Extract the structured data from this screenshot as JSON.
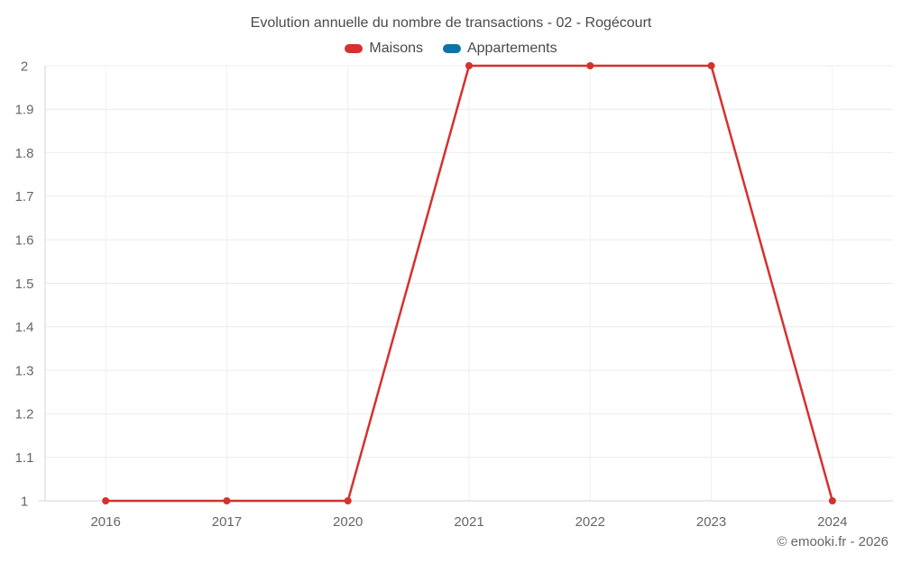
{
  "title": "Evolution annuelle du nombre de transactions - 02 - Rogécourt",
  "credits": "© emooki.fr - 2026",
  "legend": [
    {
      "label": "Maisons",
      "color": "#d5312d"
    },
    {
      "label": "Appartements",
      "color": "#0f72aa"
    }
  ],
  "colors": {
    "grid_horizontal": "#ececec",
    "grid_vertical": "#f0f0f0",
    "axis_line": "#d4d4d4",
    "title_text": "#4a4a4a",
    "axis_text": "#666666",
    "background": "#ffffff"
  },
  "chart_data": {
    "type": "line",
    "title": "Evolution annuelle du nombre de transactions - 02 - Rogécourt",
    "categories": [
      "2016",
      "2017",
      "2020",
      "2021",
      "2022",
      "2023",
      "2024"
    ],
    "series": [
      {
        "name": "Maisons",
        "color": "#d5312d",
        "values": [
          1,
          1,
          1,
          2,
          2,
          2,
          1
        ]
      },
      {
        "name": "Appartements",
        "color": "#0f72aa",
        "values": []
      }
    ],
    "xlabel": "",
    "ylabel": "",
    "ylim": [
      1,
      2
    ],
    "yticks": [
      1,
      1.1,
      1.2,
      1.3,
      1.4,
      1.5,
      1.6,
      1.7,
      1.8,
      1.9,
      2
    ],
    "ytick_labels": [
      "1",
      "1.1",
      "1.2",
      "1.3",
      "1.4",
      "1.5",
      "1.6",
      "1.7",
      "1.8",
      "1.9",
      "2"
    ],
    "grid": true,
    "legend_position": "top",
    "marker": "circle",
    "marker_radius": 4,
    "line_width": 2.5
  }
}
